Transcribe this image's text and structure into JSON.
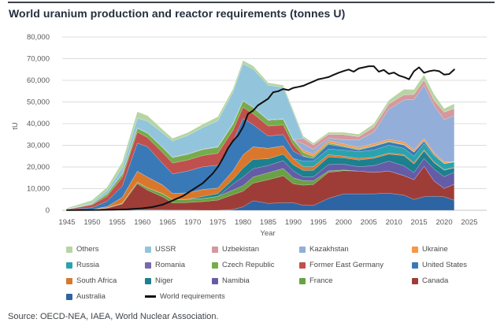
{
  "header": {
    "title": "World uranium production and reactor requirements (tonnes U)"
  },
  "footer": {
    "source": "Source: OECD-NEA, IAEA, World Nuclear Association."
  },
  "legend": {
    "items": [
      {
        "label": "Others",
        "color": "#b7d5a2",
        "type": "area"
      },
      {
        "label": "USSR",
        "color": "#92c5dc",
        "type": "area"
      },
      {
        "label": "Uzbekistan",
        "color": "#d6989c",
        "type": "area"
      },
      {
        "label": "Kazakhstan",
        "color": "#93aed8",
        "type": "area"
      },
      {
        "label": "Ukraine",
        "color": "#f79646",
        "type": "area"
      },
      {
        "label": "Russia",
        "color": "#2aa3ae",
        "type": "area"
      },
      {
        "label": "Romania",
        "color": "#7a68ae",
        "type": "area"
      },
      {
        "label": "Czech Republic",
        "color": "#76ad4b",
        "type": "area"
      },
      {
        "label": "Former East Germany",
        "color": "#c0504d",
        "type": "area"
      },
      {
        "label": "United States",
        "color": "#3a79b8",
        "type": "area"
      },
      {
        "label": "South Africa",
        "color": "#d9782d",
        "type": "area"
      },
      {
        "label": "Niger",
        "color": "#1d808e",
        "type": "area"
      },
      {
        "label": "Namibia",
        "color": "#655ca8",
        "type": "area"
      },
      {
        "label": "France",
        "color": "#69a244",
        "type": "area"
      },
      {
        "label": "Canada",
        "color": "#9e3d38",
        "type": "area"
      },
      {
        "label": "Australia",
        "color": "#2d64a3",
        "type": "area"
      },
      {
        "label": "World requirements",
        "color": "#111111",
        "type": "line"
      }
    ]
  },
  "chart_data": {
    "type": "area",
    "stacked": true,
    "title": "World uranium production and reactor requirements (tonnes U)",
    "xlabel": "Year",
    "ylabel": "tU",
    "xlim": [
      1945,
      2025
    ],
    "ylim": [
      0,
      80000
    ],
    "yticks": [
      0,
      10000,
      20000,
      30000,
      40000,
      50000,
      60000,
      70000,
      80000
    ],
    "xticks": [
      1945,
      1950,
      1955,
      1960,
      1965,
      1970,
      1975,
      1980,
      1985,
      1990,
      1995,
      2000,
      2005,
      2010,
      2015,
      2020,
      2025
    ],
    "grid": "horizontal",
    "legend_position": "bottom",
    "years": [
      1945,
      1950,
      1953,
      1956,
      1959,
      1961,
      1964,
      1966,
      1969,
      1972,
      1975,
      1978,
      1980,
      1982,
      1985,
      1988,
      1990,
      1992,
      1994,
      1997,
      2000,
      2003,
      2006,
      2009,
      2012,
      2014,
      2016,
      2018,
      2020,
      2022
    ],
    "series": [
      {
        "name": "Australia",
        "color": "#2d64a3",
        "values": [
          0,
          0,
          0,
          300,
          300,
          300,
          200,
          100,
          100,
          0,
          0,
          400,
          1600,
          4400,
          3200,
          3500,
          3500,
          2300,
          2200,
          5500,
          7600,
          7600,
          7600,
          7900,
          7000,
          5000,
          6300,
          6500,
          6200,
          4600
        ]
      },
      {
        "name": "Canada",
        "color": "#9e3d38",
        "values": [
          100,
          300,
          1000,
          2600,
          12000,
          9000,
          6000,
          3300,
          3500,
          4000,
          4700,
          6800,
          7200,
          8100,
          10900,
          12400,
          8700,
          9300,
          9700,
          12000,
          10700,
          10500,
          9900,
          10200,
          9000,
          9100,
          14000,
          7000,
          3900,
          7400
        ]
      },
      {
        "name": "France",
        "color": "#69a244",
        "values": [
          0,
          100,
          200,
          400,
          700,
          1100,
          1500,
          1600,
          1500,
          1500,
          1700,
          2200,
          2600,
          2900,
          3200,
          3400,
          2800,
          2100,
          1700,
          700,
          300,
          0,
          0,
          0,
          0,
          0,
          0,
          0,
          0,
          0
        ]
      },
      {
        "name": "Namibia",
        "color": "#655ca8",
        "values": [
          0,
          0,
          0,
          0,
          0,
          0,
          0,
          0,
          0,
          0,
          0,
          2700,
          4000,
          3800,
          3400,
          3600,
          3200,
          1700,
          1900,
          2900,
          2700,
          2000,
          3100,
          4600,
          4500,
          3300,
          3600,
          5500,
          5400,
          5600
        ]
      },
      {
        "name": "Niger",
        "color": "#1d808e",
        "values": [
          0,
          0,
          0,
          0,
          0,
          0,
          0,
          0,
          0,
          900,
          1300,
          2100,
          4100,
          4300,
          3100,
          3000,
          2800,
          3000,
          2975,
          3500,
          2900,
          3100,
          3400,
          3200,
          4700,
          4000,
          3500,
          2900,
          3000,
          2000
        ]
      },
      {
        "name": "South Africa",
        "color": "#d9782d",
        "values": [
          0,
          0,
          500,
          2700,
          5000,
          5000,
          4000,
          2800,
          3000,
          3200,
          2600,
          4000,
          6100,
          5800,
          4800,
          3900,
          2900,
          1700,
          1700,
          1100,
          800,
          750,
          530,
          560,
          470,
          570,
          490,
          350,
          250,
          200
        ]
      },
      {
        "name": "Russia",
        "color": "#2aa3ae",
        "values": [
          0,
          0,
          0,
          0,
          0,
          0,
          0,
          0,
          0,
          0,
          0,
          0,
          0,
          0,
          0,
          0,
          0,
          2600,
          2500,
          2600,
          2800,
          3100,
          3300,
          3600,
          2900,
          3000,
          3000,
          2900,
          2800,
          2500
        ]
      },
      {
        "name": "United States",
        "color": "#3a79b8",
        "values": [
          300,
          800,
          2500,
          5200,
          13000,
          14000,
          10000,
          9000,
          10000,
          10500,
          10500,
          13500,
          16800,
          10300,
          5700,
          5200,
          3400,
          2200,
          1300,
          2200,
          1500,
          800,
          1700,
          1500,
          1600,
          1900,
          1100,
          600,
          100,
          100
        ]
      },
      {
        "name": "Former East Germany",
        "color": "#c0504d",
        "values": [
          0,
          1300,
          2300,
          4000,
          5100,
          4200,
          5000,
          5000,
          5100,
          5200,
          5500,
          5200,
          5200,
          5000,
          4600,
          4400,
          2900,
          200,
          0,
          0,
          0,
          0,
          0,
          0,
          0,
          0,
          0,
          0,
          0,
          0
        ]
      },
      {
        "name": "Czech Republic",
        "color": "#76ad4b",
        "values": [
          200,
          400,
          1200,
          1600,
          1800,
          2000,
          2300,
          2500,
          2600,
          2700,
          2800,
          2800,
          2800,
          2800,
          2600,
          2600,
          2200,
          1500,
          900,
          600,
          500,
          400,
          360,
          260,
          220,
          160,
          140,
          0,
          0,
          0
        ]
      },
      {
        "name": "Romania",
        "color": "#7a68ae",
        "values": [
          0,
          0,
          0,
          0,
          100,
          150,
          200,
          250,
          250,
          250,
          250,
          300,
          300,
          300,
          300,
          250,
          250,
          200,
          120,
          100,
          90,
          90,
          90,
          75,
          90,
          80,
          50,
          0,
          0,
          50
        ]
      },
      {
        "name": "Ukraine",
        "color": "#f79646",
        "values": [
          0,
          0,
          0,
          0,
          0,
          0,
          0,
          0,
          0,
          0,
          0,
          0,
          0,
          0,
          0,
          0,
          0,
          1000,
          1000,
          1000,
          800,
          800,
          800,
          840,
          960,
          930,
          1000,
          790,
          700,
          100
        ]
      },
      {
        "name": "Kazakhstan",
        "color": "#93aed8",
        "values": [
          0,
          0,
          0,
          0,
          0,
          0,
          0,
          0,
          0,
          0,
          0,
          0,
          0,
          0,
          0,
          0,
          0,
          2800,
          2200,
          1100,
          1900,
          3300,
          5300,
          14000,
          19500,
          23100,
          24600,
          21700,
          19500,
          21200
        ]
      },
      {
        "name": "Uzbekistan",
        "color": "#d6989c",
        "values": [
          0,
          0,
          0,
          0,
          0,
          0,
          0,
          0,
          0,
          0,
          0,
          0,
          0,
          0,
          0,
          0,
          0,
          2600,
          2000,
          1800,
          2400,
          1600,
          2300,
          2400,
          2400,
          2400,
          2400,
          2400,
          3500,
          3300
        ]
      },
      {
        "name": "USSR",
        "color": "#92c5dc",
        "values": [
          0,
          500,
          1500,
          3000,
          4500,
          5500,
          6500,
          7500,
          8500,
          10000,
          12000,
          14500,
          17000,
          17500,
          16000,
          14500,
          12500,
          0,
          0,
          0,
          0,
          0,
          0,
          0,
          0,
          0,
          0,
          0,
          0,
          0
        ]
      },
      {
        "name": "Others",
        "color": "#b7d5a2",
        "values": [
          400,
          1200,
          1500,
          2500,
          3000,
          2500,
          1600,
          1200,
          1300,
          1500,
          1800,
          1500,
          1500,
          1500,
          1100,
          1000,
          1000,
          1000,
          800,
          900,
          1000,
          1100,
          1500,
          1700,
          2500,
          2200,
          2400,
          2900,
          1600,
          2100
        ]
      }
    ],
    "requirements_line": {
      "label": "World requirements",
      "color": "#111111",
      "points": [
        [
          1945,
          100
        ],
        [
          1950,
          150
        ],
        [
          1954,
          250
        ],
        [
          1957,
          450
        ],
        [
          1960,
          900
        ],
        [
          1962,
          1500
        ],
        [
          1964,
          2600
        ],
        [
          1966,
          4500
        ],
        [
          1968,
          6500
        ],
        [
          1970,
          9500
        ],
        [
          1972,
          12500
        ],
        [
          1974,
          17000
        ],
        [
          1975,
          20000
        ],
        [
          1976,
          24000
        ],
        [
          1977,
          28500
        ],
        [
          1978,
          32000
        ],
        [
          1979,
          34500
        ],
        [
          1980,
          38500
        ],
        [
          1981,
          44500
        ],
        [
          1982,
          46000
        ],
        [
          1983,
          48500
        ],
        [
          1984,
          50000
        ],
        [
          1985,
          51500
        ],
        [
          1986,
          54500
        ],
        [
          1987,
          55000
        ],
        [
          1988,
          56000
        ],
        [
          1989,
          55500
        ],
        [
          1990,
          56500
        ],
        [
          1991,
          57000
        ],
        [
          1992,
          57500
        ],
        [
          1993,
          58500
        ],
        [
          1994,
          59500
        ],
        [
          1995,
          60500
        ],
        [
          1996,
          61000
        ],
        [
          1997,
          61500
        ],
        [
          1998,
          62500
        ],
        [
          1999,
          63500
        ],
        [
          2000,
          64300
        ],
        [
          2001,
          65000
        ],
        [
          2002,
          64000
        ],
        [
          2003,
          65500
        ],
        [
          2004,
          66000
        ],
        [
          2005,
          66500
        ],
        [
          2006,
          66500
        ],
        [
          2007,
          64000
        ],
        [
          2008,
          64800
        ],
        [
          2009,
          63000
        ],
        [
          2010,
          63600
        ],
        [
          2011,
          62200
        ],
        [
          2012,
          61500
        ],
        [
          2013,
          60500
        ],
        [
          2014,
          64200
        ],
        [
          2015,
          66000
        ],
        [
          2016,
          63500
        ],
        [
          2017,
          64200
        ],
        [
          2018,
          64600
        ],
        [
          2019,
          64200
        ],
        [
          2020,
          62600
        ],
        [
          2021,
          62900
        ],
        [
          2022,
          65000
        ]
      ]
    }
  }
}
